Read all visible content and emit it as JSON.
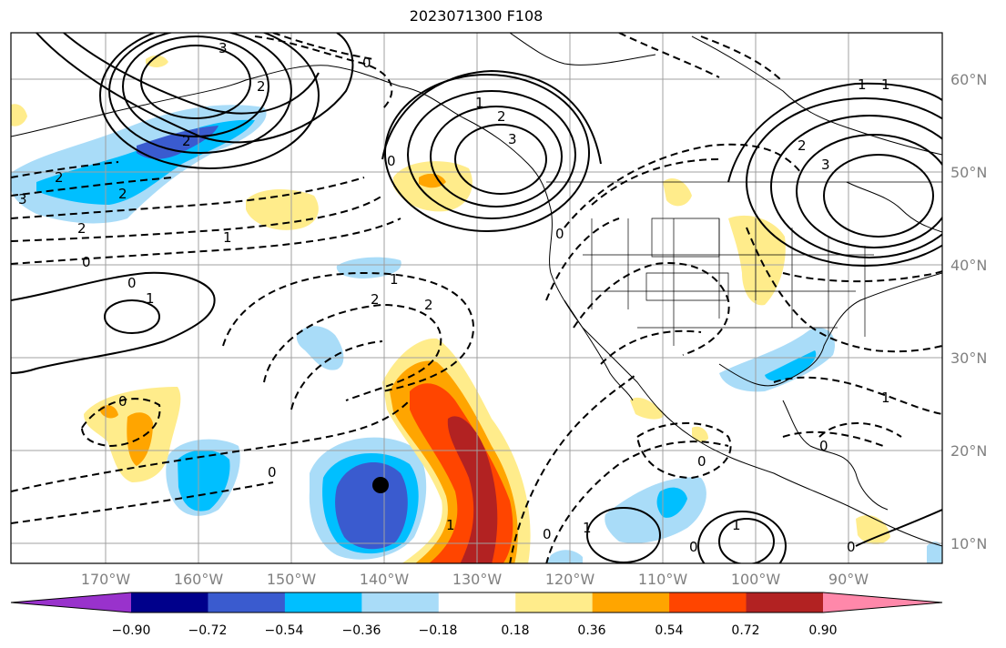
{
  "title": "2023071300 F108",
  "latitude_labels": [
    "60°N",
    "50°N",
    "40°N",
    "30°N",
    "20°N",
    "10°N"
  ],
  "longitude_labels": [
    "170°W",
    "160°W",
    "150°W",
    "140°W",
    "130°W",
    "120°W",
    "110°W",
    "100°W",
    "90°W"
  ],
  "colorbar": {
    "ticks": [
      "−0.90",
      "−0.72",
      "−0.54",
      "−0.36",
      "−0.18",
      "0.18",
      "0.36",
      "0.54",
      "0.72",
      "0.90"
    ],
    "colors": [
      "#9932cc",
      "#00008b",
      "#3a5bcf",
      "#00bfff",
      "#a9dcf8",
      "#ffffff",
      "#ffec8b",
      "#ffa500",
      "#ff4500",
      "#b22222",
      "#ff88aa"
    ]
  },
  "contour_labels": [
    "3",
    "0",
    "2",
    "1",
    "2",
    "3",
    "1",
    "2",
    "0",
    "3",
    "2",
    "1",
    "0",
    "2",
    "1",
    "0",
    "1",
    "2",
    "2",
    "0",
    "1",
    "0",
    "0",
    "1",
    "1",
    "0",
    "0",
    "0",
    "1",
    "0",
    "0",
    "1",
    "3",
    "2",
    "2"
  ],
  "marker": "storm-center-dot"
}
